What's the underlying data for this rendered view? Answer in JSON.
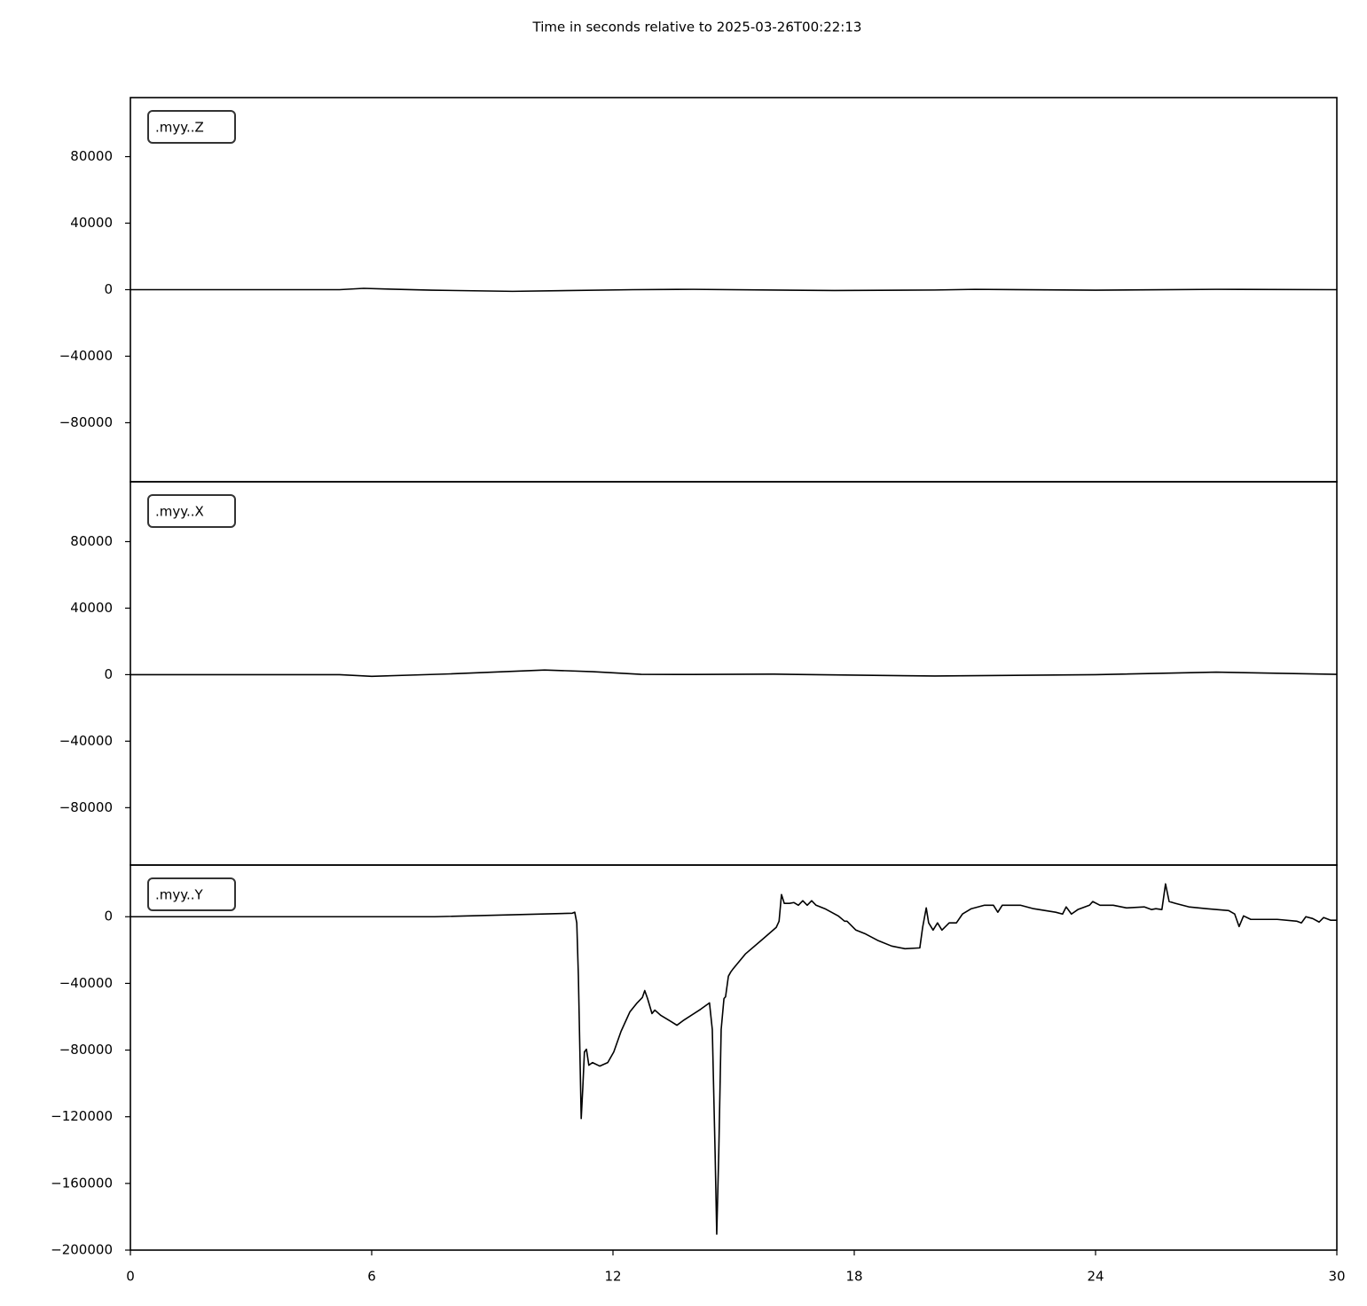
{
  "title": "Time in seconds relative to 2025-03-26T00:22:13",
  "chart_data": [
    {
      "type": "line",
      "x": [
        0,
        5.2,
        5.8,
        6.5,
        7.5,
        9.5,
        12.5,
        14,
        17.5,
        20,
        21,
        24,
        27,
        30
      ],
      "series": [
        {
          "name": ".myy..Z",
          "color": "#000000",
          "values": [
            0,
            0,
            800,
            300,
            -300,
            -1000,
            0,
            200,
            -500,
            -200,
            200,
            -300,
            200,
            0
          ]
        }
      ],
      "xlim": [
        0,
        30
      ],
      "ylim": [
        -115500,
        115500
      ],
      "yticks": [
        {
          "value": -80000,
          "label": "−80000"
        },
        {
          "value": -40000,
          "label": "−40000"
        },
        0,
        40000,
        80000
      ]
    },
    {
      "type": "line",
      "x": [
        0,
        5.2,
        6,
        8,
        10.3,
        11.5,
        12.7,
        14,
        16,
        18,
        20,
        24,
        27,
        30
      ],
      "series": [
        {
          "name": ".myy..X",
          "color": "#000000",
          "values": [
            0,
            0,
            -1000,
            500,
            2800,
            1800,
            200,
            100,
            300,
            -300,
            -800,
            0,
            1500,
            200
          ]
        }
      ],
      "xlim": [
        0,
        30
      ],
      "ylim": [
        -114500,
        116000
      ],
      "yticks": [
        {
          "value": -80000,
          "label": "−80000"
        },
        {
          "value": -40000,
          "label": "−40000"
        },
        0,
        40000,
        80000
      ]
    },
    {
      "type": "line",
      "x": [
        0,
        7.57,
        10.99,
        11.05,
        11.1,
        11.14,
        11.21,
        11.25,
        11.29,
        11.34,
        11.4,
        11.49,
        11.67,
        11.87,
        12.02,
        12.2,
        12.42,
        12.6,
        12.73,
        12.79,
        12.86,
        12.97,
        13.04,
        13.19,
        13.41,
        13.59,
        13.74,
        14.18,
        14.4,
        14.47,
        14.54,
        14.58,
        14.63,
        14.69,
        14.76,
        14.8,
        14.87,
        14.93,
        14.98,
        15.29,
        15.73,
        16.06,
        16.13,
        16.19,
        16.26,
        16.39,
        16.5,
        16.61,
        16.72,
        16.83,
        16.94,
        17.05,
        17.27,
        17.6,
        17.76,
        17.82,
        18.04,
        18.26,
        18.6,
        18.93,
        19.26,
        19.63,
        19.7,
        19.79,
        19.85,
        19.96,
        20.07,
        20.18,
        20.36,
        20.54,
        20.69,
        20.91,
        21.24,
        21.46,
        21.57,
        21.68,
        21.9,
        22.13,
        22.46,
        23.01,
        23.18,
        23.27,
        23.4,
        23.56,
        23.85,
        23.93,
        24.11,
        24.44,
        24.77,
        25.21,
        25.39,
        25.5,
        25.65,
        25.74,
        25.83,
        25.99,
        26.32,
        26.76,
        27.31,
        27.46,
        27.57,
        27.68,
        27.86,
        28.52,
        29.01,
        29.12,
        29.23,
        29.4,
        29.56,
        29.67,
        29.85,
        30
      ],
      "series": [
        {
          "name": ".myy..Y",
          "color": "#000000",
          "values": [
            0,
            0,
            2100,
            2700,
            -3700,
            -35700,
            -121100,
            -102400,
            -81100,
            -79500,
            -89100,
            -87500,
            -89600,
            -87500,
            -81100,
            -68800,
            -57100,
            -51700,
            -48500,
            -44300,
            -49100,
            -58100,
            -56000,
            -59200,
            -62400,
            -65100,
            -62400,
            -55500,
            -51700,
            -67700,
            -142400,
            -190400,
            -142400,
            -67700,
            -49100,
            -48000,
            -35700,
            -33100,
            -31500,
            -22400,
            -13300,
            -6400,
            -2700,
            13300,
            8000,
            8000,
            8500,
            6900,
            9600,
            6900,
            9600,
            6900,
            4800,
            500,
            -2700,
            -2700,
            -8000,
            -10100,
            -14400,
            -17600,
            -19200,
            -18700,
            -6400,
            5300,
            -3700,
            -8000,
            -3700,
            -8000,
            -3700,
            -3700,
            1600,
            4800,
            6900,
            6900,
            2700,
            6900,
            6900,
            6900,
            4800,
            2700,
            1600,
            5900,
            1600,
            4300,
            6900,
            9100,
            6900,
            6900,
            5300,
            5900,
            4300,
            4800,
            4300,
            19700,
            9100,
            8000,
            5900,
            4800,
            3700,
            1600,
            -5900,
            500,
            -1600,
            -1600,
            -2700,
            -3700,
            0,
            -1100,
            -3200,
            -500,
            -2100,
            -2100
          ]
        }
      ],
      "xlim": [
        0,
        30
      ],
      "ylim": [
        -200000,
        31000
      ],
      "yticks": [
        {
          "value": -200000,
          "label": "−200000"
        },
        {
          "value": -160000,
          "label": "−160000"
        },
        {
          "value": -120000,
          "label": "−120000"
        },
        {
          "value": -80000,
          "label": "−80000"
        },
        {
          "value": -40000,
          "label": "−40000"
        },
        0
      ],
      "xticks": [
        0,
        6,
        12,
        18,
        24,
        30
      ]
    }
  ]
}
